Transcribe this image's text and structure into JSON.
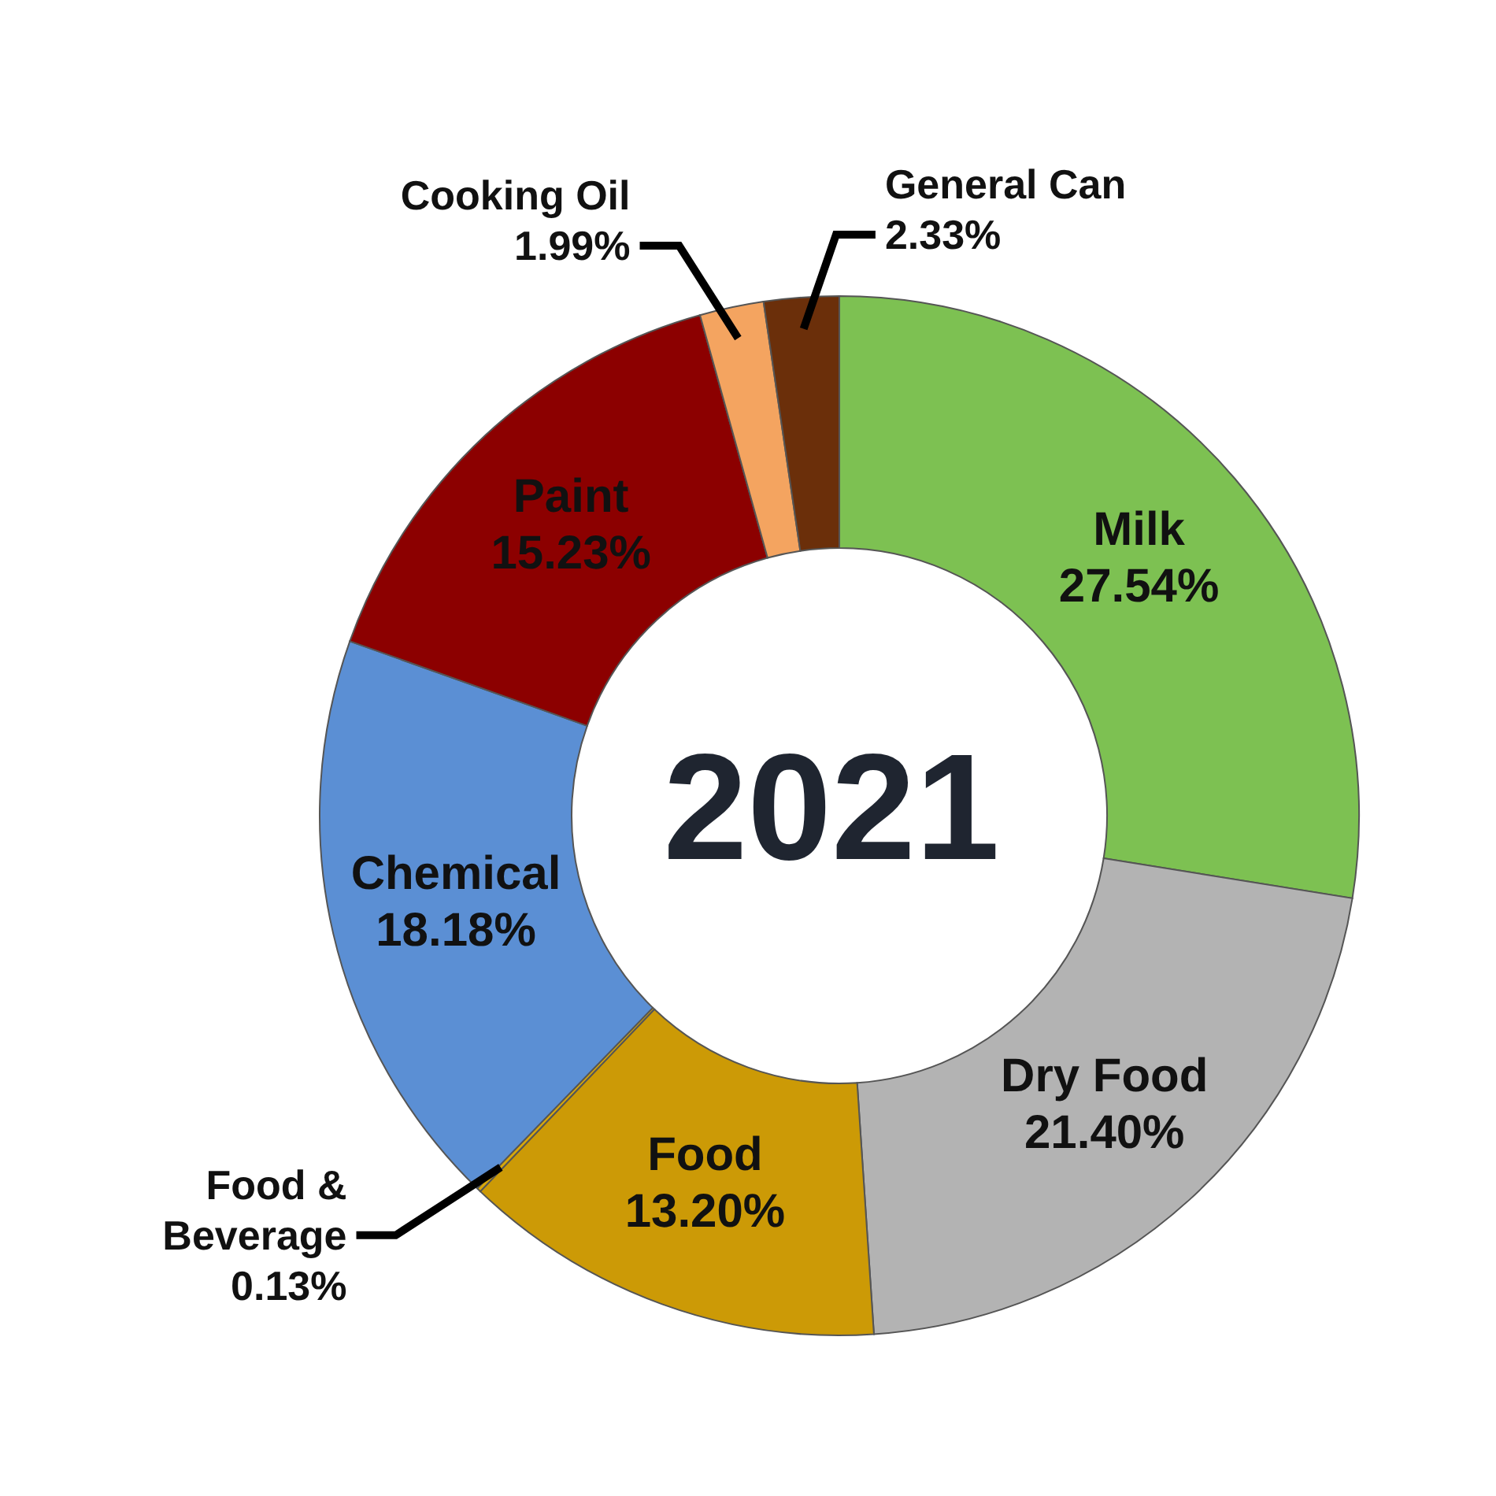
{
  "chart_data": {
    "type": "donut",
    "title": "2021",
    "categories": [
      "Milk",
      "Dry Food",
      "Food",
      "Food & Beverage",
      "Chemical",
      "Paint",
      "Cooking Oil",
      "General Can"
    ],
    "values": [
      27.54,
      21.4,
      13.2,
      0.13,
      18.18,
      15.23,
      1.99,
      2.33
    ],
    "value_labels": [
      "27.54%",
      "21.40%",
      "13.20%",
      "0.13%",
      "18.18%",
      "15.23%",
      "1.99%",
      "2.33%"
    ],
    "colors": [
      "#7dc152",
      "#b3b3b3",
      "#cc9a06",
      "#d8a80a",
      "#5b8fd4",
      "#8c0000",
      "#f4a460",
      "#6b2f0a"
    ]
  }
}
